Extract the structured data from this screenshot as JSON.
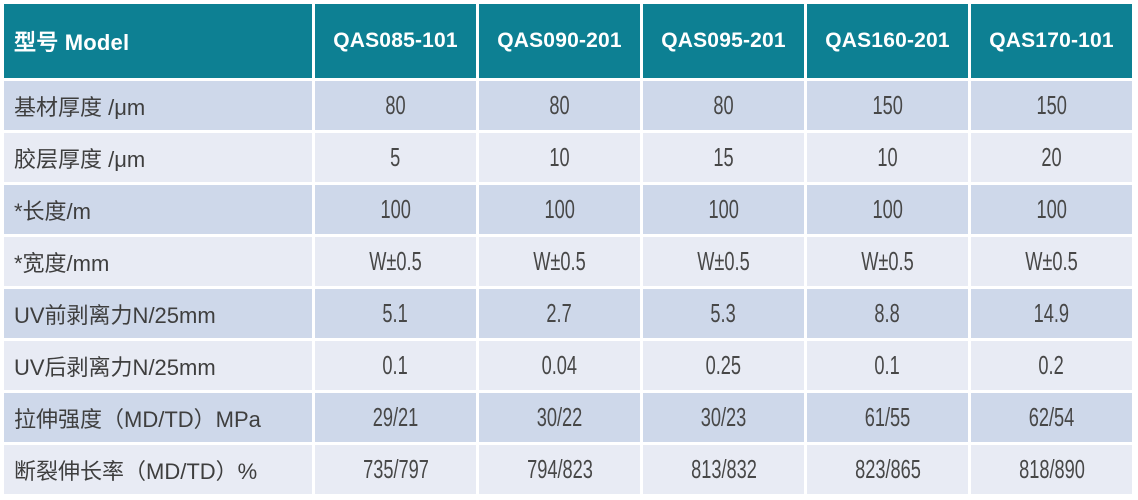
{
  "chart_data": {
    "type": "table",
    "title": "型号 Model specification table",
    "columns": [
      "型号 Model",
      "QAS085-101",
      "QAS090-201",
      "QAS095-201",
      "QAS160-201",
      "QAS170-101"
    ],
    "rows": [
      [
        "基材厚度  /μm",
        "80",
        "80",
        "80",
        "150",
        "150"
      ],
      [
        "胶层厚度 /μm",
        "5",
        "10",
        "15",
        "10",
        "20"
      ],
      [
        "*长度/m",
        "100",
        "100",
        "100",
        "100",
        "100"
      ],
      [
        "*宽度/mm",
        "W±0.5",
        "W±0.5",
        "W±0.5",
        "W±0.5",
        "W±0.5"
      ],
      [
        "UV前剥离力N/25mm",
        "5.1",
        "2.7",
        "5.3",
        "8.8",
        "14.9"
      ],
      [
        "UV后剥离力N/25mm",
        "0.1",
        "0.04",
        "0.25",
        "0.1",
        "0.2"
      ],
      [
        "拉伸强度（MD/TD）MPa",
        "29/21",
        "30/22",
        "30/23",
        "61/55",
        "62/54"
      ],
      [
        "断裂伸长率（MD/TD）%",
        "735/797",
        "794/823",
        "813/832",
        "823/865",
        "818/890"
      ]
    ]
  },
  "colors": {
    "header_bg": "#0d8093",
    "header_text": "#ffffff",
    "row_odd_bg": "#ced8ea",
    "row_even_bg": "#e8ebf4",
    "body_text": "#3e3e3e",
    "grid_gap": "#ffffff"
  }
}
